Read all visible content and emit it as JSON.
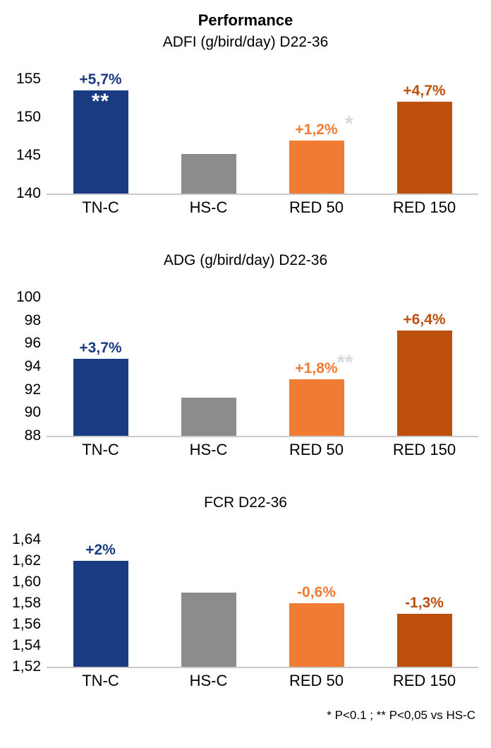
{
  "page_title": "Performance",
  "footnote": "* P<0.1 ; ** P<0,05 vs HS-C",
  "colors": {
    "tnc": "#1a3a82",
    "hsc": "#8c8c8c",
    "red50": "#f07b33",
    "red150": "#bd500d",
    "star_gray": "#d9d9d9",
    "axis_line": "#c9c9c9"
  },
  "chart_data": [
    {
      "type": "bar",
      "title": "ADFI (g/bird/day) D22-36",
      "categories": [
        "TN-C",
        "HS-C",
        "RED 50",
        "RED 150"
      ],
      "values": [
        153.5,
        145.2,
        146.9,
        152.0
      ],
      "bar_colors": [
        "tnc",
        "hsc",
        "red50",
        "red150"
      ],
      "annotations": [
        "+5,7%",
        "",
        "+1,2%",
        "+4,7%"
      ],
      "annotation_colors": [
        "tnc",
        "",
        "red50",
        "red150"
      ],
      "stars_inside": [
        "**",
        "",
        "",
        ""
      ],
      "stars_after": [
        "",
        "",
        "*",
        ""
      ],
      "ylim": [
        140,
        155
      ],
      "yticks": [
        155,
        150,
        145,
        140
      ],
      "ytick_labels": [
        "155",
        "150",
        "145",
        "140"
      ],
      "xlabel": "",
      "ylabel": "",
      "grid": false,
      "legend": false
    },
    {
      "type": "bar",
      "title": "ADG (g/bird/day) D22-36",
      "categories": [
        "TN-C",
        "HS-C",
        "RED 50",
        "RED 150"
      ],
      "values": [
        94.7,
        91.3,
        92.9,
        97.1
      ],
      "bar_colors": [
        "tnc",
        "hsc",
        "red50",
        "red150"
      ],
      "annotations": [
        "+3,7%",
        "",
        "+1,8%",
        "+6,4%"
      ],
      "annotation_colors": [
        "tnc",
        "",
        "red50",
        "red150"
      ],
      "stars_inside": [
        "",
        "",
        "",
        ""
      ],
      "stars_after": [
        "",
        "",
        "**",
        ""
      ],
      "ylim": [
        88,
        100
      ],
      "yticks": [
        100,
        98,
        96,
        94,
        92,
        90,
        88
      ],
      "ytick_labels": [
        "100",
        "98",
        "96",
        "94",
        "92",
        "90",
        "88"
      ],
      "xlabel": "",
      "ylabel": "",
      "grid": false,
      "legend": false
    },
    {
      "type": "bar",
      "title": "FCR D22-36",
      "categories": [
        "TN-C",
        "HS-C",
        "RED 50",
        "RED 150"
      ],
      "values": [
        1.62,
        1.59,
        1.58,
        1.57
      ],
      "bar_colors": [
        "tnc",
        "hsc",
        "red50",
        "red150"
      ],
      "annotations": [
        "+2%",
        "",
        "-0,6%",
        "-1,3%"
      ],
      "annotation_colors": [
        "tnc",
        "",
        "red50",
        "red150"
      ],
      "stars_inside": [
        "",
        "",
        "",
        ""
      ],
      "stars_after": [
        "",
        "",
        "",
        ""
      ],
      "ylim": [
        1.52,
        1.64
      ],
      "yticks": [
        1.64,
        1.62,
        1.6,
        1.58,
        1.56,
        1.54,
        1.52
      ],
      "ytick_labels": [
        "1,64",
        "1,62",
        "1,60",
        "1,58",
        "1,56",
        "1,54",
        "1,52"
      ],
      "xlabel": "",
      "ylabel": "",
      "grid": false,
      "legend": false
    }
  ]
}
